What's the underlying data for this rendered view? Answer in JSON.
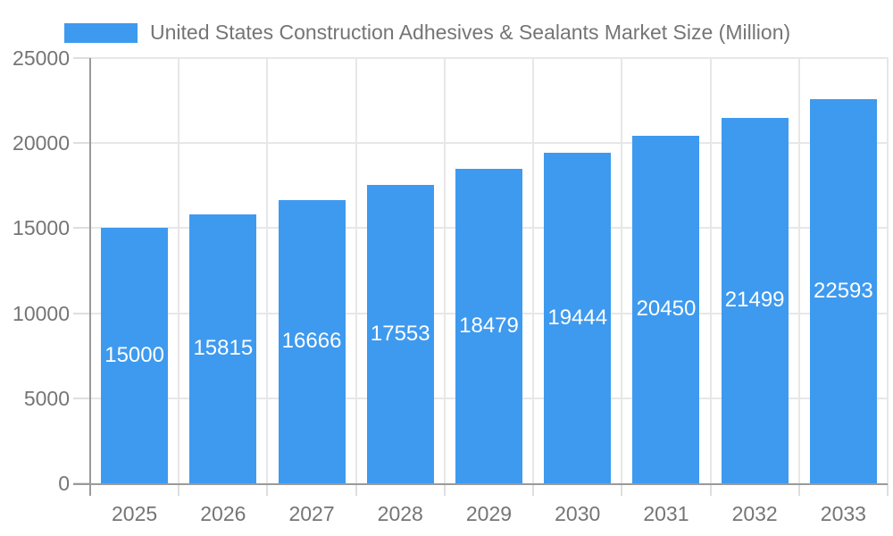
{
  "legend": {
    "series_label": "United States Construction Adhesives & Sealants Market Size (Million)"
  },
  "colors": {
    "bar": "#3E9AEF",
    "bar_label": "#FFFFFF",
    "axis_label": "#757575",
    "axis_line": "#9A9A9A",
    "gridline": "#E7E7E7",
    "tick": "#DEDEDE"
  },
  "chart_data": {
    "type": "bar",
    "title": "United States Construction Adhesives & Sealants Market Size (Million)",
    "series": [
      {
        "name": "United States Construction Adhesives & Sealants Market Size (Million)",
        "values": [
          15000,
          15815,
          16666,
          17553,
          18479,
          19444,
          20450,
          21499,
          22593
        ]
      }
    ],
    "categories": [
      "2025",
      "2026",
      "2027",
      "2028",
      "2029",
      "2030",
      "2031",
      "2032",
      "2033"
    ],
    "xlabel": "",
    "ylabel": "",
    "ylim": [
      0,
      25000
    ],
    "yticks": [
      0,
      5000,
      10000,
      15000,
      20000,
      25000
    ],
    "grid": true,
    "legend_position": "top",
    "bar_value_labels": "inside-center"
  }
}
